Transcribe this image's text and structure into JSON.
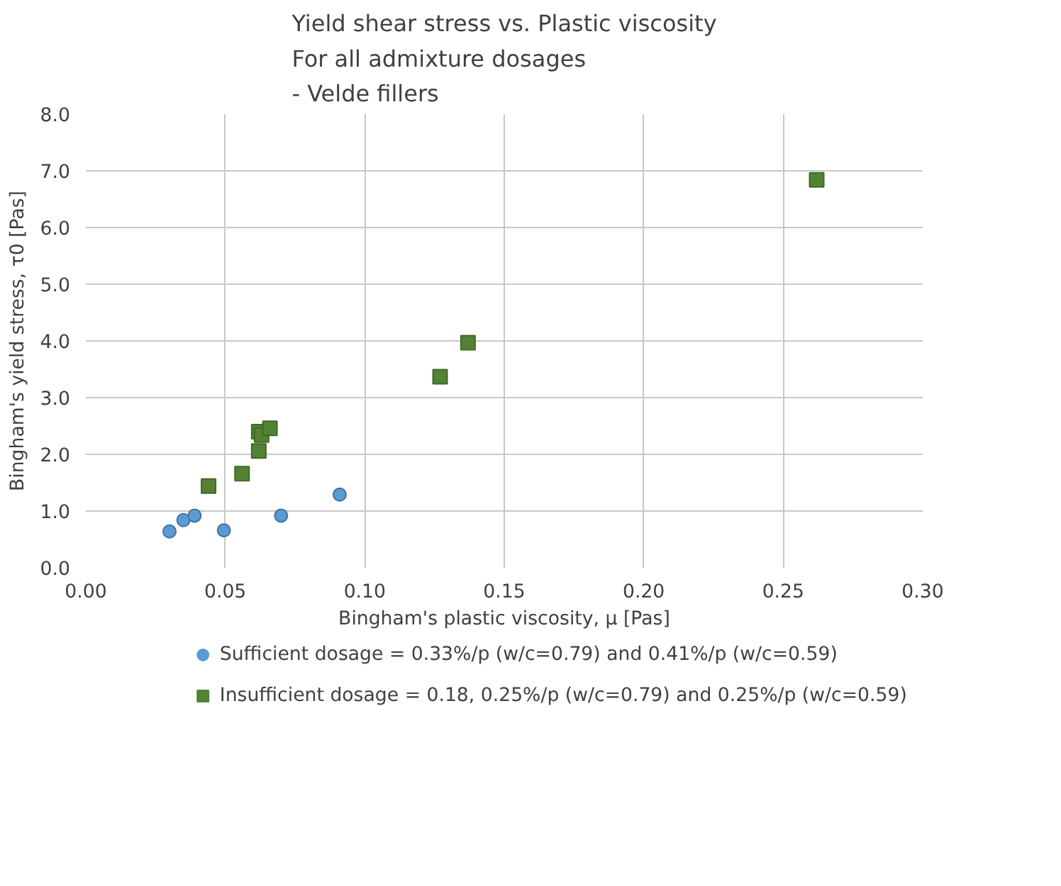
{
  "chart_data": {
    "type": "scatter",
    "title": "Yield shear stress vs. Plastic viscosity\nFor all admixture dosages\n- Velde fillers",
    "xlabel": "Bingham's plastic viscosity, μ [Pas]",
    "ylabel": "Bingham's yield stress, τ0 [Pas]",
    "xlim": [
      0,
      0.3
    ],
    "xticks": [
      {
        "value": 0,
        "label": "0.00"
      },
      {
        "value": 0.05,
        "label": "0.05"
      },
      {
        "value": 0.1,
        "label": "0.10"
      },
      {
        "value": 0.15,
        "label": "0.15"
      },
      {
        "value": 0.2,
        "label": "0.20"
      },
      {
        "value": 0.25,
        "label": "0.25"
      },
      {
        "value": 0.3,
        "label": "0.30"
      }
    ],
    "ylim": [
      0,
      8
    ],
    "yticks": [
      {
        "value": 0,
        "label": "0.0"
      },
      {
        "value": 1,
        "label": "1.0"
      },
      {
        "value": 2,
        "label": "2.0"
      },
      {
        "value": 3,
        "label": "3.0"
      },
      {
        "value": 4,
        "label": "4.0"
      },
      {
        "value": 5,
        "label": "5.0"
      },
      {
        "value": 6,
        "label": "6.0"
      },
      {
        "value": 7,
        "label": "7.0"
      },
      {
        "value": 8,
        "label": "8.0"
      }
    ],
    "grid": true,
    "legend": "bottom",
    "series": [
      {
        "name": "Sufficient dosage = 0.33%/p (w/c=0.79) and 0.41%/p (w/c=0.59)",
        "color": "#5b9bd5",
        "marker": "circle",
        "x": [
          0.03,
          0.035,
          0.039,
          0.0495,
          0.07,
          0.091
        ],
        "values": [
          0.64,
          0.84,
          0.92,
          0.66,
          0.92,
          1.29
        ]
      },
      {
        "name": "Insufficient dosage = 0.18, 0.25%/p (w/c=0.79) and 0.25%/p (w/c=0.59)",
        "color": "#548235",
        "marker": "square",
        "x": [
          0.044,
          0.056,
          0.062,
          0.062,
          0.063,
          0.066,
          0.127,
          0.137,
          0.262
        ],
        "values": [
          1.44,
          1.66,
          2.06,
          2.4,
          2.34,
          2.46,
          3.37,
          3.97,
          6.84
        ]
      }
    ]
  }
}
